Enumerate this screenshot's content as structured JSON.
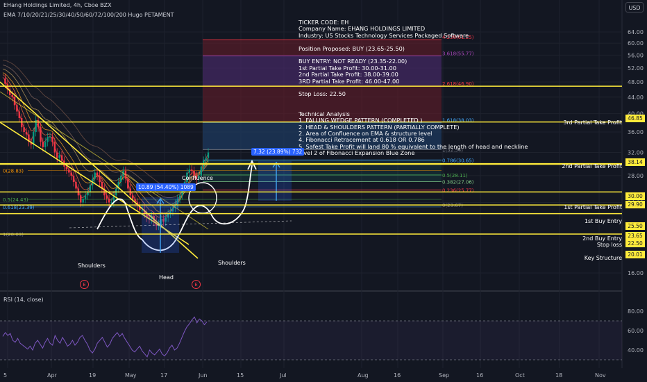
{
  "header": {
    "symbol_title": "EHang Holdings Limited, 4h, Cboe BZX",
    "indicator_legend": "EMA 7/10/20/21/25/30/40/50/60/72/100/200 Hugo PETAMENT",
    "currency_badge": "USD",
    "rsi_legend": "RSI (14, close)"
  },
  "analysis_text": "TICKER CODE: EH\nCompany Name: EHANG HOLDINGS LIMITED\nIndustry: US Stocks Technology Services Packaged Software\n\nPosition Proposed: BUY (23.65-25.50)\n\nBUY ENTRY: NOT READY (23.35-22.00)\n1st Partial Take Profit: 30.00-31.00\n2nd Partial Take Profit: 38.00-39.00\n3RD Partial Take Profit: 46.00-47.00\n\nStop Loss: 22.50\n\n\nTechnical Analysis\n1. FALLING WEDGE PATTERN (COMPLETED )\n2. HEAD & SHOULDERS PATTERN (PARTIALLY COMPLETE)\n2. Area of Confluence on EMA & structure level\n4. Fibonacci Retracement at 0.618 OR 0.786\n5. Safest Take Profit will land 80 % equivalent to the length of head and neckline\nlevel 2 of Fibonacci Expansion Blue Zone",
  "measurements": {
    "left": "10.89 (54.40%) 1089",
    "right": "7.32 (23.89%) 732"
  },
  "pattern_labels": {
    "left_shoulder": "Shoulders",
    "head": "Head",
    "right_shoulder": "Shoulders",
    "confluence": "Confluence",
    "earnings_mark": "E"
  },
  "right_labels": {
    "tp3": "3rd Partial Take Profit",
    "tp2": "2nd Partial Take Profit",
    "tp1": "1st Partial Take Profit",
    "entry1": "1st Buy Entry",
    "entry2": "2nd Buy Entry",
    "stop": "Stop loss",
    "key": "Key Structure"
  },
  "price_tags": {
    "tp3": "46.85",
    "tp2": "38.14",
    "tp1a": "30.00",
    "tp1b": "29.90",
    "entry1": "25.50",
    "entry2": "23.65",
    "stop": "22.50",
    "key": "20.01"
  },
  "fib_retracement_labels": {
    "f1": "1(32.54)",
    "f0786": "0.786(30.65)",
    "f05": "0.5(28.11)",
    "f0382": "0.382(27.06)",
    "f0236": "0.236(25.77)",
    "f0": "0(23.67)",
    "left0": "0(28.83)",
    "left05": "0.5(24.43)",
    "left0618": "0.618(23.39)",
    "left1": "1(20.03)"
  },
  "fib_extension_labels": {
    "e4236": "4.236(61.25)",
    "e3618": "3.618(55.77)",
    "e2618": "2.618(46.90)",
    "e1618": "1.618(38.03)"
  },
  "colors": {
    "background": "#131722",
    "up_candle": "#089981",
    "down_candle": "#f23645",
    "level_line": "#ffeb3b",
    "rsi_line": "#7e57c2",
    "measure_box": "#2962ff",
    "ext_red_zone": "#6b1e2a",
    "ext_purple_zone": "#4a2a6b",
    "ext_blue_zone": "#1e3a5f"
  },
  "chart_data": {
    "type": "candlestick",
    "price_axis": {
      "unit": "USD",
      "ticks": [
        "64.00",
        "60.00",
        "56.00",
        "52.00",
        "48.00",
        "44.00",
        "40.00",
        "36.00",
        "32.00",
        "28.00",
        "24.00",
        "20.00",
        "16.00"
      ],
      "ylim": [
        14,
        66
      ],
      "scale": "log"
    },
    "time_axis": {
      "ticks": [
        "5",
        "Apr",
        "19",
        "May",
        "17",
        "Jun",
        "15",
        "Jul",
        "Aug",
        "16",
        "Sep",
        "16",
        "Oct",
        "18",
        "Nov"
      ]
    },
    "rsi_axis": {
      "ticks": [
        "80.00",
        "60.00",
        "40.00"
      ],
      "ylim": [
        30,
        90
      ],
      "overbought": 70,
      "oversold": 30
    },
    "horizontal_levels": [
      46.85,
      38.14,
      30.0,
      29.9,
      25.5,
      23.65,
      22.5,
      20.01
    ],
    "price_series": [
      49,
      47.5,
      46,
      44.5,
      44,
      42,
      40.5,
      39,
      37,
      36,
      35.5,
      34,
      33.5,
      36,
      38.5,
      37,
      34,
      33,
      34,
      35,
      35,
      34,
      32,
      31,
      31.5,
      30.5,
      29.5,
      29,
      28.5,
      28,
      27,
      26,
      25,
      24,
      24.5,
      25,
      25.5,
      26.5,
      27.5,
      28.5,
      28,
      27,
      26,
      25,
      24.5,
      24,
      24,
      25,
      26,
      27,
      28,
      28.8,
      27.5,
      26,
      25,
      24.5,
      24,
      23.5,
      23,
      23,
      22.5,
      22,
      21.8,
      22.2,
      21.5,
      21,
      21.2,
      21.8,
      21.5,
      22,
      22.5,
      22.8,
      23.3,
      23.8,
      24.5,
      25,
      26,
      27,
      28.5,
      29,
      28.8,
      28,
      27.5,
      28,
      29.5,
      30.5,
      31,
      32
    ],
    "rsi_series": [
      54,
      58,
      55,
      57,
      50,
      48,
      52,
      47,
      45,
      43,
      41,
      44,
      40,
      47,
      50,
      46,
      42,
      48,
      52,
      47,
      45,
      55,
      50,
      47,
      53,
      49,
      44,
      46,
      50,
      45,
      48,
      53,
      55,
      50,
      46,
      40,
      37,
      41,
      47,
      50,
      53,
      48,
      43,
      46,
      52,
      55,
      58,
      54,
      57,
      52,
      48,
      44,
      40,
      38,
      41,
      44,
      39,
      36,
      33,
      40,
      37,
      35,
      38,
      41,
      36,
      34,
      37,
      42,
      45,
      40,
      42,
      47,
      53,
      59,
      64,
      67,
      71,
      74,
      68,
      72,
      70,
      66,
      69
    ]
  }
}
